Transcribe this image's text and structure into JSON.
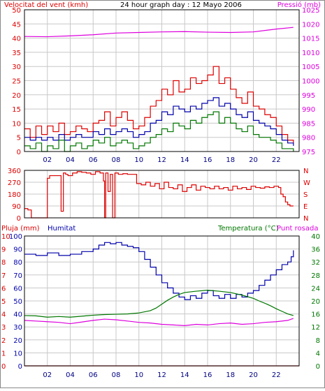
{
  "colors": {
    "background": "#ffffff",
    "plot_bg": "#ffffff",
    "grid": "#c8c8c8",
    "frame": "#000000",
    "wind": "#dd0000",
    "gust": "#dd0000",
    "avg_wind": "#0000aa",
    "wind_green": "#007700",
    "pressure": "#dd00dd",
    "direction": "#dd0000",
    "rain": "#dd0000",
    "humidity": "#0000aa",
    "temperature": "#007700",
    "dewpoint": "#dd00dd",
    "x_tick_text": "#000080"
  },
  "chart_data": [
    {
      "id": "wind-pressure",
      "type": "line",
      "title": "24 hour graph day : 12 Mayo 2006",
      "left_label": "Velocitat del vent (kmh)",
      "right_label": "Pressió (mb)",
      "xlim": [
        0,
        24
      ],
      "x_ticks": [
        "02",
        "04",
        "06",
        "08",
        "10",
        "12",
        "14",
        "16",
        "18",
        "20",
        "22"
      ],
      "ylim_left": [
        0,
        50
      ],
      "yticks_left": [
        "0",
        "5",
        "10",
        "15",
        "20",
        "25",
        "30",
        "35",
        "40",
        "45",
        "50"
      ],
      "ylim_right": [
        975,
        1025
      ],
      "yticks_right": [
        "975",
        "980",
        "985",
        "990",
        "995",
        "1000",
        "1005",
        "1010",
        "1015",
        "1020",
        "1025"
      ],
      "grid": true,
      "series": [
        {
          "key": "gust",
          "axis": "left",
          "x": [
            0,
            0.5,
            1,
            1.5,
            2,
            2.5,
            3,
            3.5,
            4,
            4.5,
            5,
            5.5,
            6,
            6.5,
            7,
            7.5,
            8,
            8.5,
            9,
            9.5,
            10,
            10.5,
            11,
            11.5,
            12,
            12.5,
            13,
            13.5,
            14,
            14.5,
            15,
            15.5,
            16,
            16.5,
            17,
            17.5,
            18,
            18.5,
            19,
            19.5,
            20,
            20.5,
            21,
            21.5,
            22,
            22.5,
            23,
            23.5
          ],
          "values": [
            8,
            5,
            9,
            6,
            9,
            7,
            10,
            6,
            7,
            9,
            8,
            7,
            10,
            11,
            14,
            9,
            12,
            14,
            11,
            8,
            9,
            12,
            16,
            18,
            22,
            20,
            25,
            21,
            22,
            26,
            24,
            25,
            27,
            30,
            24,
            26,
            22,
            19,
            17,
            21,
            16,
            15,
            13,
            12,
            9,
            6,
            4,
            3
          ]
        },
        {
          "key": "avg_wind",
          "axis": "left",
          "x": [
            0,
            0.5,
            1,
            1.5,
            2,
            2.5,
            3,
            3.5,
            4,
            4.5,
            5,
            5.5,
            6,
            6.5,
            7,
            7.5,
            8,
            8.5,
            9,
            9.5,
            10,
            10.5,
            11,
            11.5,
            12,
            12.5,
            13,
            13.5,
            14,
            14.5,
            15,
            15.5,
            16,
            16.5,
            17,
            17.5,
            18,
            18.5,
            19,
            19.5,
            20,
            20.5,
            21,
            21.5,
            22,
            22.5,
            23,
            23.5
          ],
          "values": [
            5,
            4,
            5,
            4,
            5,
            4,
            6,
            4,
            5,
            6,
            5,
            5,
            7,
            6,
            8,
            6,
            7,
            8,
            7,
            5,
            6,
            7,
            10,
            11,
            14,
            13,
            16,
            15,
            14,
            16,
            15,
            17,
            18,
            19,
            16,
            17,
            15,
            13,
            12,
            14,
            11,
            10,
            9,
            8,
            6,
            4,
            3,
            2
          ]
        },
        {
          "key": "wind_green",
          "axis": "left",
          "x": [
            0,
            0.5,
            1,
            1.5,
            2,
            2.5,
            3,
            3.5,
            4,
            4.5,
            5,
            5.5,
            6,
            6.5,
            7,
            7.5,
            8,
            8.5,
            9,
            9.5,
            10,
            10.5,
            11,
            11.5,
            12,
            12.5,
            13,
            13.5,
            14,
            14.5,
            15,
            15.5,
            16,
            16.5,
            17,
            17.5,
            18,
            18.5,
            19,
            19.5,
            20,
            20.5,
            21,
            21.5,
            22,
            22.5,
            23,
            23.5
          ],
          "values": [
            2,
            1,
            3,
            0,
            2,
            1,
            4,
            0,
            2,
            3,
            1,
            2,
            4,
            3,
            5,
            2,
            3,
            4,
            3,
            1,
            2,
            3,
            5,
            6,
            8,
            7,
            10,
            9,
            8,
            11,
            10,
            12,
            13,
            14,
            10,
            12,
            10,
            8,
            7,
            9,
            6,
            5,
            5,
            4,
            3,
            1,
            1,
            0
          ]
        },
        {
          "key": "pressure",
          "axis": "right",
          "x": [
            0,
            2,
            4,
            6,
            8,
            10,
            12,
            14,
            16,
            18,
            20,
            22,
            23.5
          ],
          "values": [
            1015.6,
            1015.5,
            1015.8,
            1016.2,
            1016.8,
            1017.0,
            1017.2,
            1017.3,
            1017.1,
            1017.0,
            1017.2,
            1018.2,
            1018.8
          ]
        }
      ]
    },
    {
      "id": "wind-direction",
      "type": "line",
      "xlim": [
        0,
        24
      ],
      "ylim": [
        0,
        360
      ],
      "yticks": [
        "0",
        "90",
        "180",
        "270",
        "360"
      ],
      "right_ticks": [
        "N",
        "W",
        "S",
        "E",
        "N"
      ],
      "grid": true,
      "series": [
        {
          "key": "direction",
          "x": [
            0,
            0.3,
            0.6,
            0.9,
            1.2,
            1.5,
            1.8,
            2.0,
            2.2,
            2.6,
            3.0,
            3.2,
            3.4,
            3.6,
            3.8,
            4.2,
            4.6,
            5.0,
            5.4,
            5.8,
            6.2,
            6.6,
            6.9,
            7.0,
            7.1,
            7.3,
            7.5,
            7.7,
            7.9,
            8.0,
            8.2,
            8.6,
            9.0,
            9.4,
            9.8,
            10.2,
            10.6,
            11.0,
            11.4,
            11.8,
            12.2,
            12.6,
            13.0,
            13.4,
            13.8,
            14.2,
            14.6,
            15.0,
            15.4,
            15.8,
            16.2,
            16.6,
            17.0,
            17.4,
            17.8,
            18.2,
            18.6,
            19.0,
            19.4,
            19.8,
            20.2,
            20.6,
            21.0,
            21.4,
            21.8,
            22.2,
            22.4,
            22.6,
            22.8,
            23.0,
            23.2,
            23.5
          ],
          "values": [
            70,
            60,
            0,
            0,
            0,
            0,
            0,
            300,
            320,
            320,
            320,
            50,
            340,
            330,
            320,
            340,
            350,
            345,
            340,
            330,
            350,
            340,
            280,
            0,
            340,
            200,
            330,
            0,
            340,
            340,
            330,
            335,
            330,
            330,
            260,
            250,
            270,
            240,
            260,
            220,
            270,
            230,
            220,
            250,
            200,
            230,
            250,
            210,
            240,
            230,
            220,
            240,
            220,
            230,
            210,
            240,
            220,
            230,
            215,
            240,
            230,
            225,
            235,
            230,
            240,
            230,
            180,
            160,
            120,
            100,
            90,
            90
          ]
        }
      ]
    },
    {
      "id": "rain-humidity-temp",
      "type": "line",
      "left_labels": [
        "Pluja (mm)",
        "Humitat"
      ],
      "right_labels": [
        "Temperatura (°C)",
        "Punt rosada"
      ],
      "xlim": [
        0,
        24
      ],
      "x_ticks": [
        "02",
        "04",
        "06",
        "08",
        "10",
        "12",
        "14",
        "16",
        "18",
        "20",
        "22"
      ],
      "yticks_rain": [
        "0",
        "1",
        "2",
        "3",
        "4",
        "5",
        "6",
        "7",
        "8",
        "9",
        "10"
      ],
      "ylim_rain": [
        0,
        10
      ],
      "yticks_hum": [
        "0",
        "10",
        "20",
        "30",
        "40",
        "50",
        "60",
        "70",
        "80",
        "90",
        "100"
      ],
      "ylim_hum": [
        0,
        100
      ],
      "yticks_temp": [
        "0",
        "4",
        "8",
        "12",
        "16",
        "20",
        "24",
        "28",
        "32",
        "36",
        "40"
      ],
      "ylim_temp": [
        0,
        40
      ],
      "grid": true,
      "series": [
        {
          "key": "rain",
          "axis": "rain",
          "x": [
            0,
            24
          ],
          "values": [
            0,
            0
          ]
        },
        {
          "key": "humidity",
          "axis": "hum",
          "x": [
            0,
            1,
            2,
            3,
            4,
            5,
            6,
            6.5,
            7,
            7.5,
            8,
            8.5,
            9,
            9.5,
            10,
            10.5,
            11,
            11.5,
            12,
            12.5,
            13,
            13.5,
            14,
            14.5,
            15,
            15.5,
            16,
            16.5,
            17,
            17.5,
            18,
            18.5,
            19,
            19.5,
            20,
            20.5,
            21,
            21.5,
            22,
            22.5,
            23,
            23.3,
            23.5
          ],
          "values": [
            86,
            85,
            87,
            85,
            86,
            88,
            90,
            93,
            95,
            94,
            95,
            93,
            92,
            91,
            88,
            82,
            76,
            70,
            64,
            60,
            56,
            53,
            51,
            54,
            52,
            56,
            58,
            54,
            52,
            55,
            52,
            55,
            53,
            56,
            58,
            62,
            66,
            70,
            74,
            78,
            80,
            84,
            89
          ]
        },
        {
          "key": "temperature",
          "axis": "temp",
          "x": [
            0,
            1,
            2,
            3,
            4,
            5,
            6,
            7,
            8,
            9,
            10,
            11,
            11.5,
            12,
            12.5,
            13,
            13.5,
            14,
            15,
            16,
            17,
            18,
            19,
            20,
            20.5,
            21,
            21.5,
            22,
            22.5,
            23,
            23.5
          ],
          "values": [
            15.5,
            15.4,
            15.0,
            15.2,
            15.0,
            15.3,
            15.6,
            15.8,
            15.9,
            16.0,
            16.3,
            17.0,
            17.8,
            19.0,
            20.2,
            21.2,
            22.0,
            22.6,
            23.0,
            23.3,
            23.0,
            22.6,
            21.8,
            20.8,
            20.0,
            19.3,
            18.5,
            17.6,
            16.8,
            16.0,
            15.5
          ]
        },
        {
          "key": "dewpoint",
          "axis": "temp",
          "x": [
            0,
            1,
            2,
            3,
            4,
            5,
            6,
            7,
            8,
            9,
            10,
            11,
            12,
            13,
            14,
            15,
            16,
            17,
            18,
            19,
            20,
            21,
            22,
            23,
            23.5
          ],
          "values": [
            14.0,
            13.8,
            13.6,
            13.4,
            13.0,
            13.5,
            14.0,
            14.4,
            14.2,
            13.8,
            13.4,
            13.2,
            12.8,
            12.6,
            12.4,
            12.8,
            12.6,
            13.0,
            13.2,
            12.8,
            13.0,
            13.4,
            13.6,
            14.0,
            14.6
          ]
        }
      ]
    }
  ]
}
